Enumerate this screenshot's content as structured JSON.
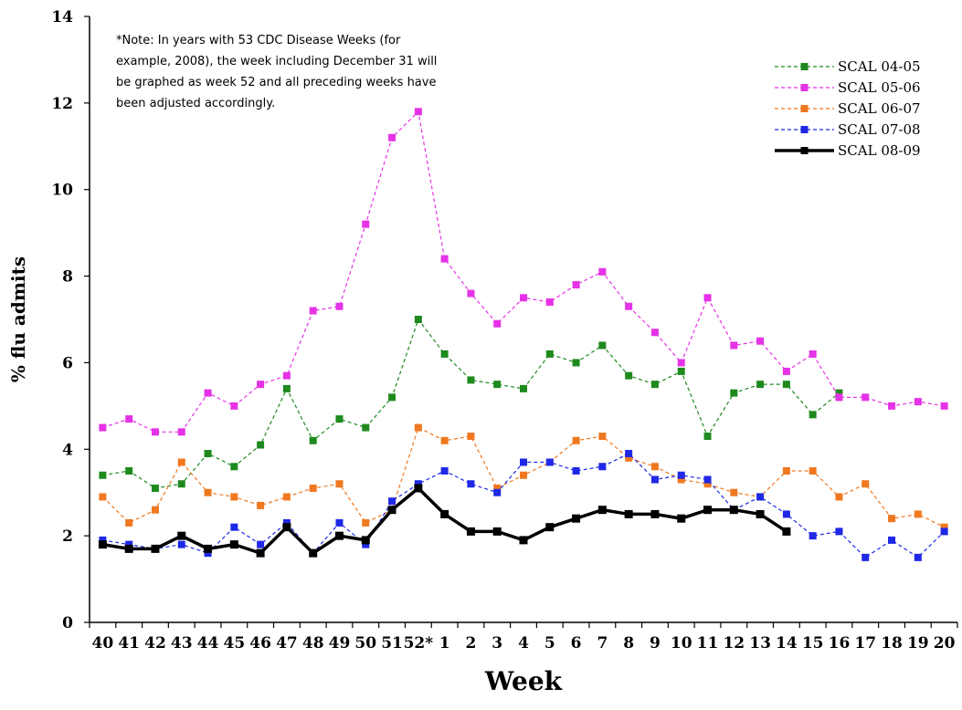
{
  "chart_data": {
    "type": "line",
    "xlabel": "Week",
    "ylabel": "% flu admits",
    "ylim": [
      0,
      14
    ],
    "yticks": [
      "0",
      "2",
      "4",
      "6",
      "8",
      "10",
      "12",
      "14"
    ],
    "categories": [
      "40",
      "41",
      "42",
      "43",
      "44",
      "45",
      "46",
      "47",
      "48",
      "49",
      "50",
      "51",
      "52*",
      "1",
      "2",
      "3",
      "4",
      "5",
      "6",
      "7",
      "8",
      "9",
      "10",
      "11",
      "12",
      "13",
      "14",
      "15",
      "16",
      "17",
      "18",
      "19",
      "20"
    ],
    "grid": false,
    "legend_position": "top-right",
    "note_lines": [
      "*Note: In years with 53 CDC Disease Weeks (for",
      "example, 2008), the week including December 31 will",
      "be graphed as week 52 and all preceding weeks have",
      "been adjusted accordingly."
    ],
    "series": [
      {
        "name": "SCAL 04-05",
        "color": "#1e8a1e",
        "style": "dashed",
        "values": [
          3.4,
          3.5,
          3.1,
          3.2,
          3.9,
          3.6,
          4.1,
          5.4,
          4.2,
          4.7,
          4.5,
          5.2,
          7.0,
          6.2,
          5.6,
          5.5,
          5.4,
          6.2,
          6.0,
          6.4,
          5.7,
          5.5,
          5.8,
          4.3,
          5.3,
          5.5,
          5.5,
          4.8,
          5.3,
          null,
          null,
          null,
          null
        ]
      },
      {
        "name": "SCAL 05-06",
        "color": "#e632e6",
        "style": "dashed",
        "values": [
          4.5,
          4.7,
          4.4,
          4.4,
          5.3,
          5.0,
          5.5,
          5.7,
          7.2,
          7.3,
          9.2,
          11.2,
          11.8,
          8.4,
          7.6,
          6.9,
          7.5,
          7.4,
          7.8,
          8.1,
          7.3,
          6.7,
          6.0,
          7.5,
          6.4,
          6.5,
          5.8,
          6.2,
          5.2,
          5.2,
          5.0,
          5.1,
          5.0
        ]
      },
      {
        "name": "SCAL 06-07",
        "color": "#f07820",
        "style": "dashed",
        "values": [
          2.9,
          2.3,
          2.6,
          3.7,
          3.0,
          2.9,
          2.7,
          2.9,
          3.1,
          3.2,
          2.3,
          2.6,
          4.5,
          4.2,
          4.3,
          3.1,
          3.4,
          3.7,
          4.2,
          4.3,
          3.8,
          3.6,
          3.3,
          3.2,
          3.0,
          2.9,
          3.5,
          3.5,
          2.9,
          3.2,
          2.4,
          2.5,
          2.2
        ]
      },
      {
        "name": "SCAL 07-08",
        "color": "#1e28e6",
        "style": "dashed",
        "values": [
          1.9,
          1.8,
          1.7,
          1.8,
          1.6,
          2.2,
          1.8,
          2.3,
          1.6,
          2.3,
          1.8,
          2.8,
          3.2,
          3.5,
          3.2,
          3.0,
          3.7,
          3.7,
          3.5,
          3.6,
          3.9,
          3.3,
          3.4,
          3.3,
          2.6,
          2.9,
          2.5,
          2.0,
          2.1,
          1.5,
          1.9,
          1.5,
          2.1
        ]
      },
      {
        "name": "SCAL 08-09",
        "color": "#000000",
        "style": "solid",
        "values": [
          1.8,
          1.7,
          1.7,
          2.0,
          1.7,
          1.8,
          1.6,
          2.2,
          1.6,
          2.0,
          1.9,
          2.6,
          3.1,
          2.5,
          2.1,
          2.1,
          1.9,
          2.2,
          2.4,
          2.6,
          2.5,
          2.5,
          2.4,
          2.6,
          2.6,
          2.5,
          2.1,
          null,
          null,
          null,
          null,
          null,
          null
        ]
      }
    ]
  }
}
